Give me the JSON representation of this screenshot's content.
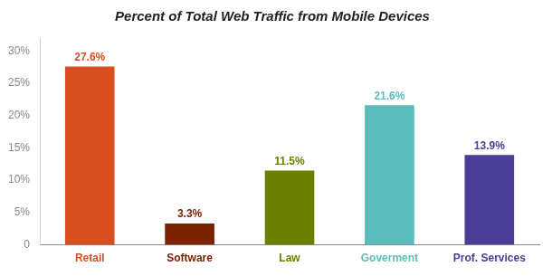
{
  "chart_data": {
    "type": "bar",
    "title": "Percent of Total Web Traffic from Mobile Devices",
    "categories": [
      "Retail",
      "Software",
      "Law",
      "Goverment",
      "Prof. Services"
    ],
    "values": [
      27.6,
      3.3,
      11.5,
      21.6,
      13.9
    ],
    "value_labels": [
      "27.6%",
      "3.3%",
      "11.5%",
      "21.6%",
      "13.9%"
    ],
    "colors": [
      "#d94e1f",
      "#7b2200",
      "#6b8000",
      "#5bbcbe",
      "#4a3d9a"
    ],
    "ylim": [
      0,
      32
    ],
    "yticks": [
      0,
      {
        "value": 5,
        "label": "5%"
      },
      {
        "value": 10,
        "label": "10%"
      },
      {
        "value": 15,
        "label": "15%"
      },
      {
        "value": 20,
        "label": "20%"
      },
      {
        "value": 25,
        "label": "25%"
      },
      {
        "value": 30,
        "label": "30%"
      }
    ],
    "grid": false,
    "data_labels": true
  }
}
